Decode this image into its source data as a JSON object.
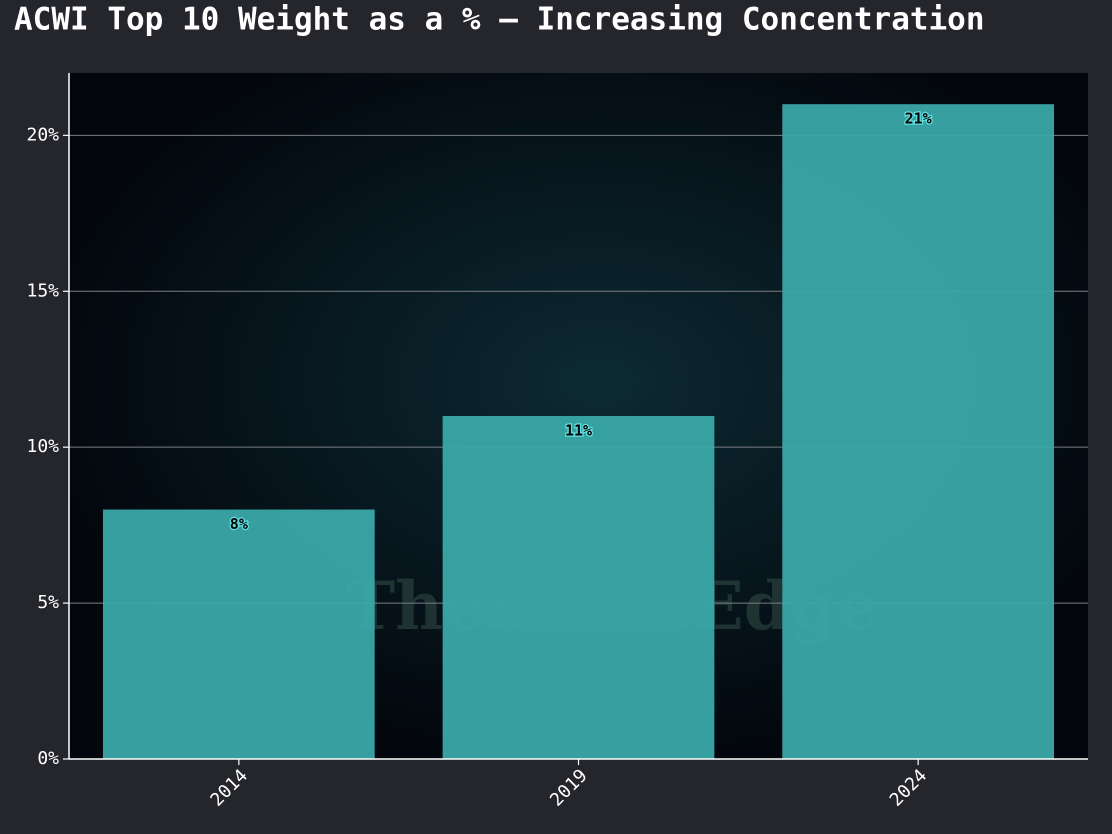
{
  "chart_data": {
    "type": "bar",
    "title": "ACWI Top 10 Weight as a % – Increasing Concentration",
    "watermark": "ThematicEdge",
    "categories": [
      "2014",
      "2019",
      "2024"
    ],
    "values": [
      8,
      11,
      21
    ],
    "value_labels": [
      "8%",
      "11%",
      "21%"
    ],
    "color": "#3aa8a8",
    "ylim": [
      0,
      22
    ],
    "yticks": [
      {
        "value": 0,
        "label": "0%"
      },
      {
        "value": 5,
        "label": "5%"
      },
      {
        "value": 10,
        "label": "10%"
      },
      {
        "value": 15,
        "label": "15%"
      },
      {
        "value": 20,
        "label": "20%"
      }
    ],
    "grid": true
  }
}
